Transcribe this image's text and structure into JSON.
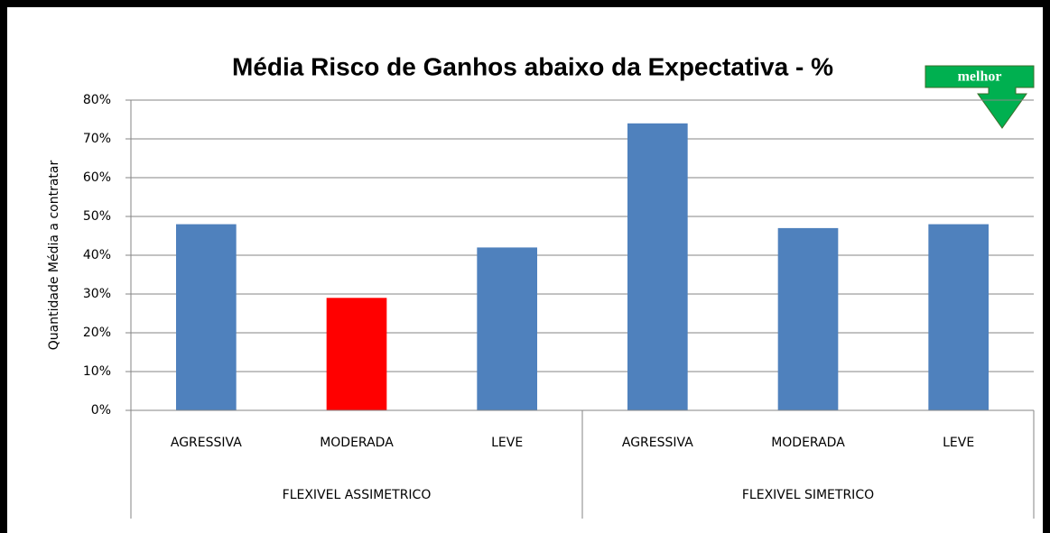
{
  "chart_data": {
    "type": "bar",
    "title": "Média Risco de Ganhos abaixo da Expectativa - %",
    "y_label": "Quantidade Média a contratar",
    "annotation": "melhor",
    "groups": [
      "FLEXIVEL ASSIMETRICO",
      "FLEXIVEL SIMETRICO"
    ],
    "categories": [
      "AGRESSIVA",
      "MODERADA",
      "LEVE",
      "AGRESSIVA",
      "MODERADA",
      "LEVE"
    ],
    "values": [
      48,
      29,
      42,
      74,
      47,
      48
    ],
    "colors": [
      "#4f81bd",
      "#ff0000",
      "#4f81bd",
      "#4f81bd",
      "#4f81bd",
      "#4f81bd"
    ],
    "ylim": [
      0,
      80
    ],
    "yticks": [
      {
        "value": 0,
        "label": "0%"
      },
      {
        "value": 10,
        "label": "10%"
      },
      {
        "value": 20,
        "label": "20%"
      },
      {
        "value": 30,
        "label": "30%"
      },
      {
        "value": 40,
        "label": "40%"
      },
      {
        "value": 50,
        "label": "50%"
      },
      {
        "value": 60,
        "label": "60%"
      },
      {
        "value": 70,
        "label": "70%"
      },
      {
        "value": 80,
        "label": "80%"
      }
    ],
    "grid": true
  }
}
